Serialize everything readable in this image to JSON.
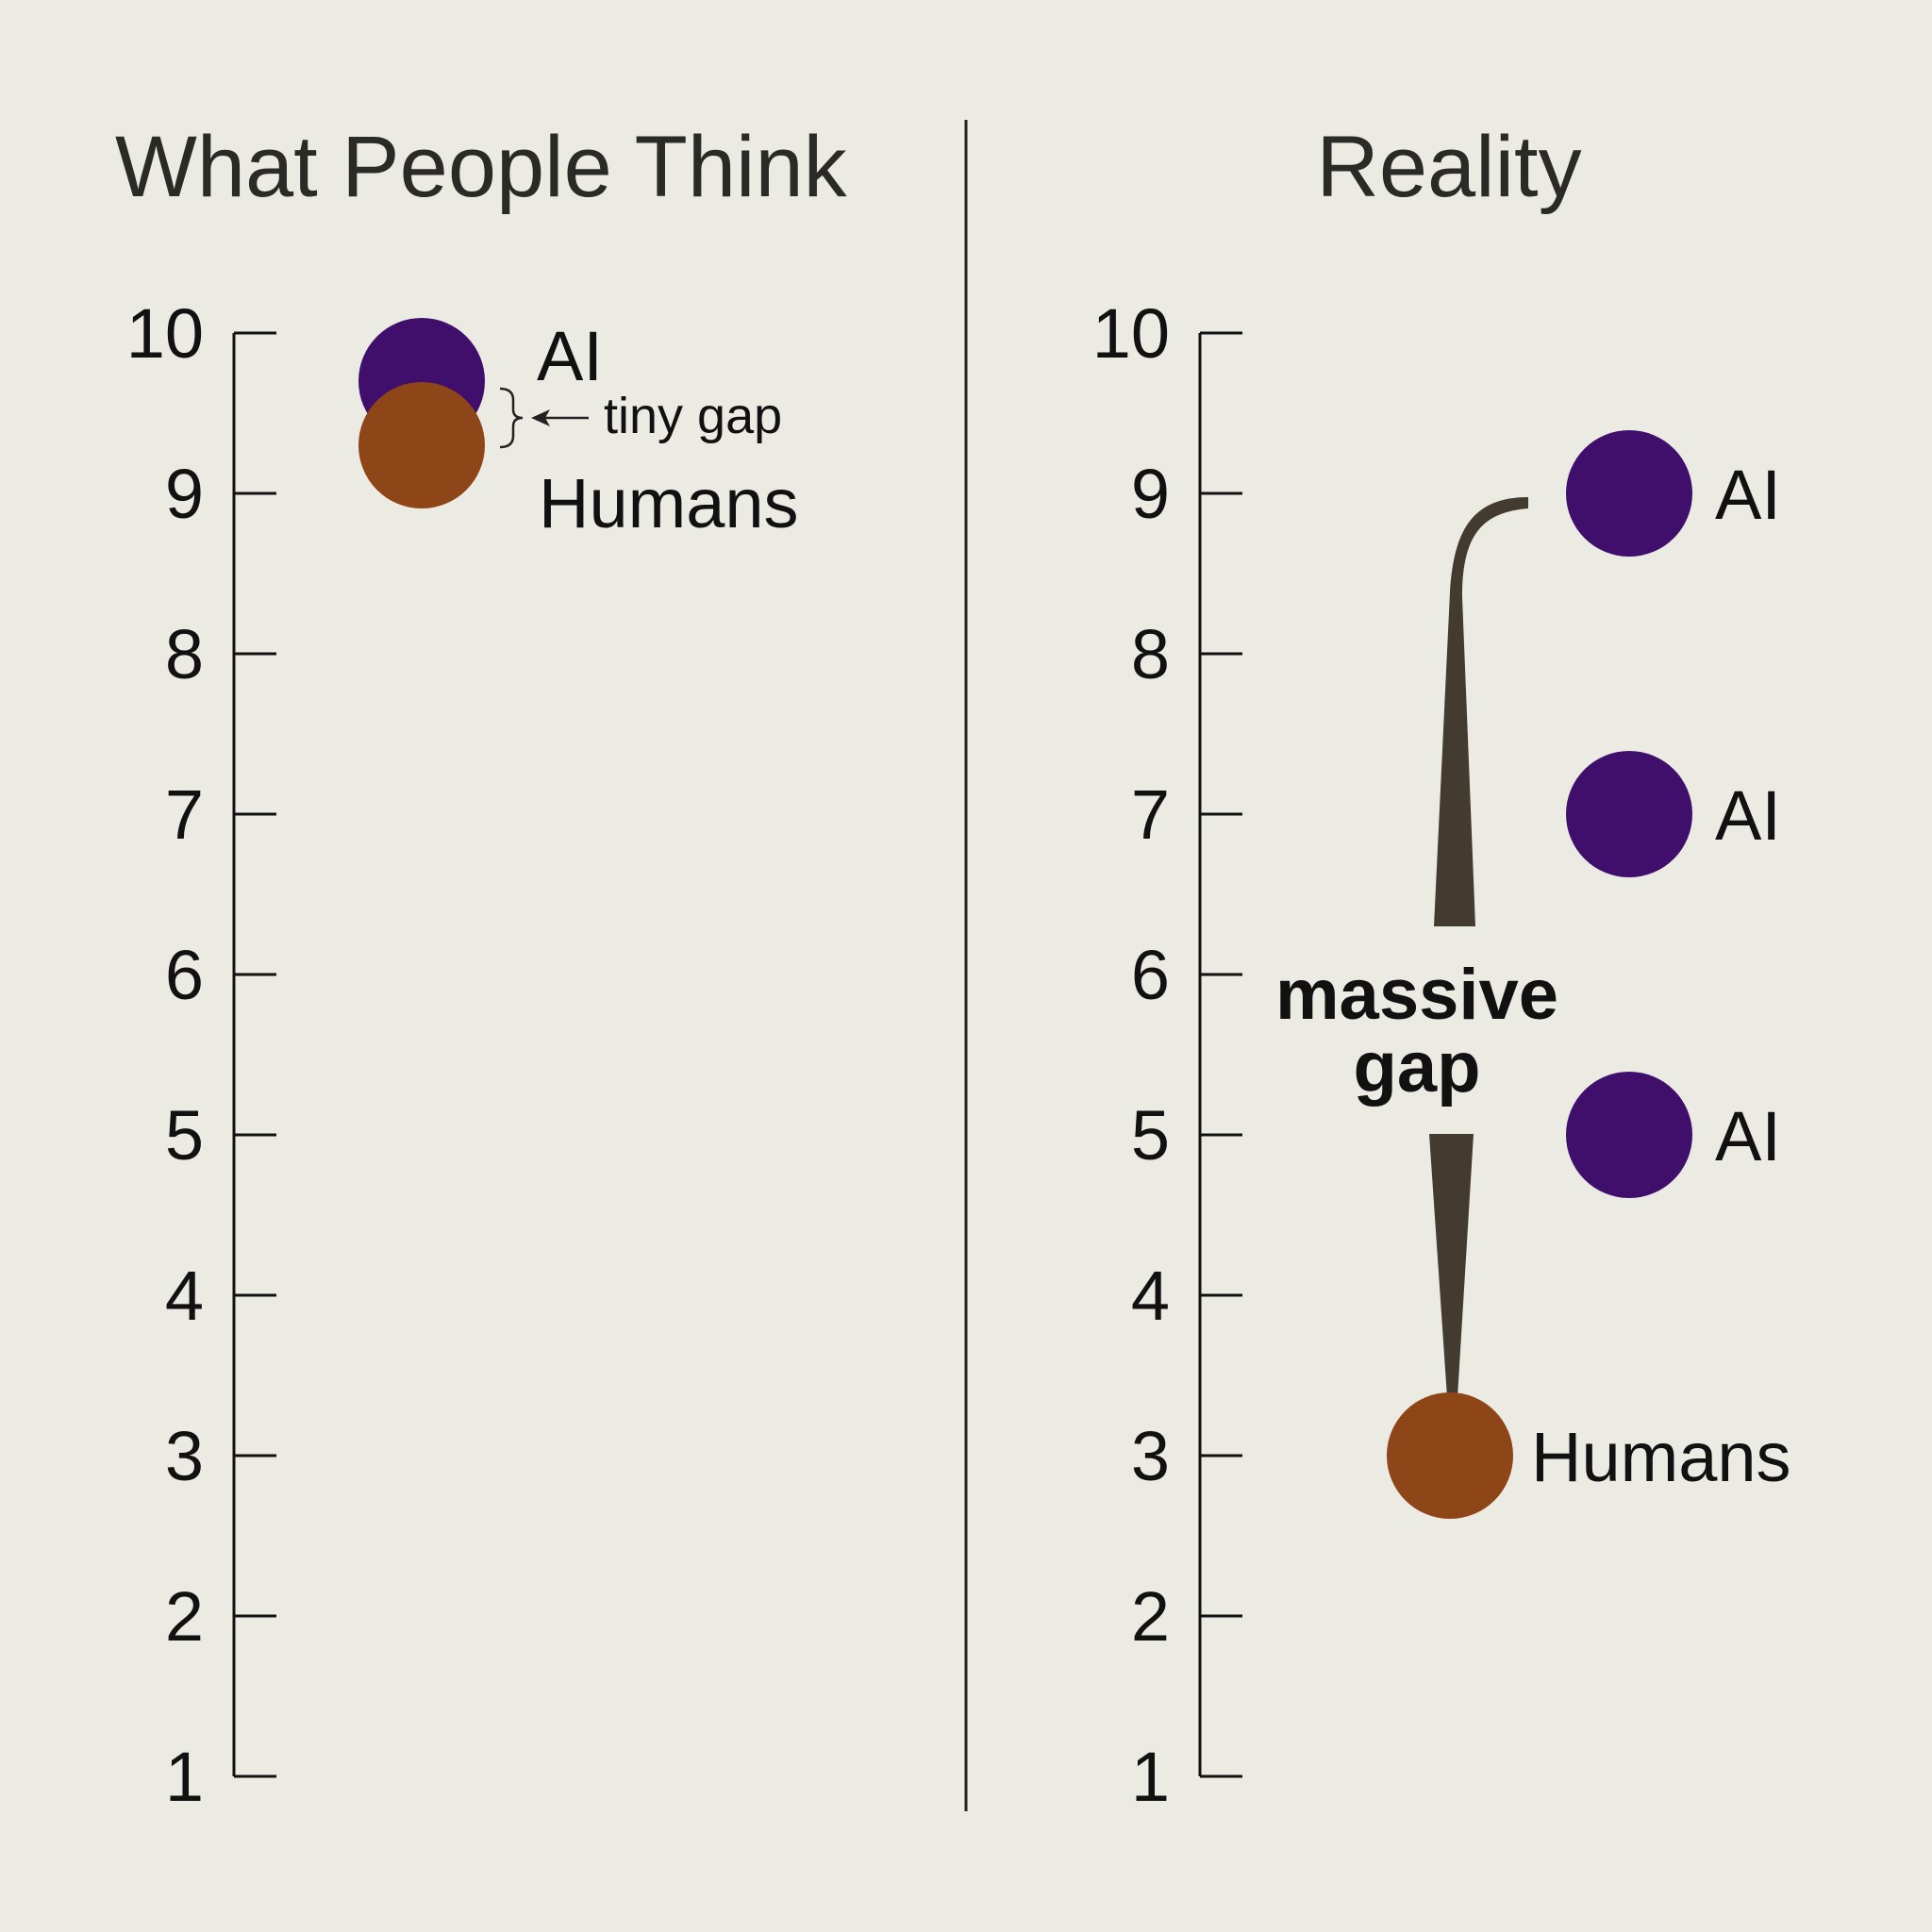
{
  "chart_data": [
    {
      "type": "scatter",
      "title": "What People Think",
      "ylim": [
        1,
        10
      ],
      "yticks": [
        "1",
        "2",
        "3",
        "4",
        "5",
        "6",
        "7",
        "8",
        "9",
        "10"
      ],
      "grid": false,
      "points": [
        {
          "label": "AI",
          "value": 9.7,
          "color": "#3f0f6b"
        },
        {
          "label": "Humans",
          "value": 9.3,
          "color": "#8e4518"
        }
      ],
      "annotation": "tiny gap"
    },
    {
      "type": "scatter",
      "title": "Reality",
      "ylim": [
        1,
        10
      ],
      "yticks": [
        "1",
        "2",
        "3",
        "4",
        "5",
        "6",
        "7",
        "8",
        "9",
        "10"
      ],
      "grid": false,
      "points": [
        {
          "label": "AI",
          "value": 9,
          "color": "#3f0f6b"
        },
        {
          "label": "AI",
          "value": 7,
          "color": "#3f0f6b"
        },
        {
          "label": "AI",
          "value": 5,
          "color": "#3f0f6b"
        },
        {
          "label": "Humans",
          "value": 3,
          "color": "#8e4518"
        }
      ],
      "annotation": [
        "massive",
        "gap"
      ]
    }
  ],
  "colors": {
    "background": "#ecebe3",
    "ai": "#3f0f6b",
    "humans": "#8e4518",
    "connector": "#433a30"
  }
}
